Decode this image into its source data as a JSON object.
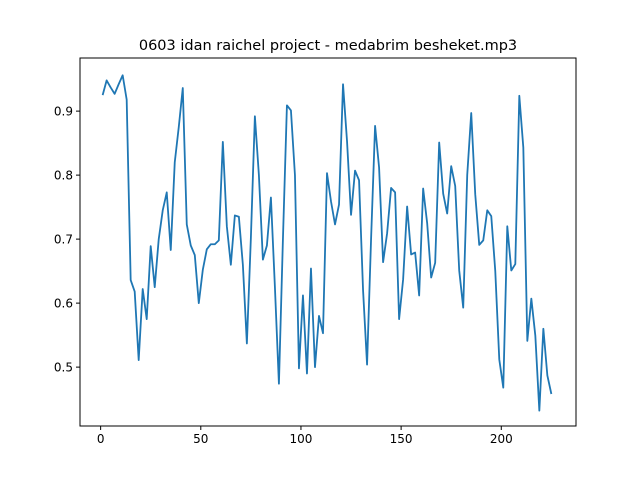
{
  "chart_data": {
    "type": "line",
    "title": "0603 idan raichel project - medabrim besheket.mp3",
    "xlabel": "",
    "ylabel": "",
    "xlim": [
      -10.3,
      237.3
    ],
    "ylim": [
      0.408,
      0.983
    ],
    "xticks": [
      0,
      50,
      100,
      150,
      200
    ],
    "yticks": [
      0.5,
      0.6,
      0.7,
      0.8,
      0.9
    ],
    "ytick_labels": [
      "0.5",
      "0.6",
      "0.7",
      "0.8",
      "0.9"
    ],
    "grid": false,
    "legend": "none",
    "color": "#1f77b4",
    "series": [
      {
        "x": [
          1,
          3,
          5,
          7,
          9,
          11,
          13,
          15,
          17,
          19,
          21,
          23,
          25,
          27,
          29,
          31,
          33,
          35,
          37,
          39,
          41,
          43,
          45,
          47,
          49,
          51,
          53,
          55,
          57,
          59,
          61,
          63,
          65,
          67,
          69,
          71,
          73,
          75,
          77,
          79,
          81,
          83,
          85,
          87,
          89,
          91,
          93,
          95,
          97,
          99,
          101,
          103,
          105,
          107,
          109,
          111,
          113,
          115,
          117,
          119,
          121,
          123,
          125,
          127,
          129,
          131,
          133,
          135,
          137,
          139,
          141,
          143,
          145,
          147,
          149,
          151,
          153,
          155,
          157,
          159,
          161,
          163,
          165,
          167,
          169,
          171,
          173,
          175,
          177,
          179,
          181,
          183,
          185,
          187,
          189,
          191,
          193,
          195,
          197,
          199,
          201,
          203,
          205,
          207,
          209,
          211,
          213,
          215,
          217,
          219,
          221,
          223,
          225
        ],
        "y": [
          0.925,
          0.948,
          0.937,
          0.927,
          0.942,
          0.956,
          0.918,
          0.636,
          0.618,
          0.511,
          0.622,
          0.575,
          0.689,
          0.625,
          0.7,
          0.745,
          0.773,
          0.683,
          0.82,
          0.875,
          0.936,
          0.723,
          0.69,
          0.675,
          0.6,
          0.652,
          0.684,
          0.692,
          0.692,
          0.698,
          0.852,
          0.72,
          0.66,
          0.737,
          0.735,
          0.66,
          0.537,
          0.702,
          0.892,
          0.8,
          0.668,
          0.69,
          0.765,
          0.625,
          0.474,
          0.7,
          0.909,
          0.901,
          0.8,
          0.498,
          0.612,
          0.49,
          0.654,
          0.5,
          0.58,
          0.553,
          0.803,
          0.759,
          0.723,
          0.754,
          0.942,
          0.853,
          0.738,
          0.807,
          0.792,
          0.62,
          0.504,
          0.7,
          0.877,
          0.812,
          0.664,
          0.709,
          0.78,
          0.773,
          0.575,
          0.637,
          0.751,
          0.676,
          0.679,
          0.612,
          0.779,
          0.725,
          0.64,
          0.663,
          0.851,
          0.771,
          0.74,
          0.814,
          0.783,
          0.651,
          0.593,
          0.8,
          0.897,
          0.77,
          0.691,
          0.698,
          0.745,
          0.736,
          0.65,
          0.512,
          0.468,
          0.72,
          0.651,
          0.661,
          0.924,
          0.843,
          0.541,
          0.607,
          0.549,
          0.432,
          0.56,
          0.487,
          0.458
        ]
      }
    ]
  }
}
